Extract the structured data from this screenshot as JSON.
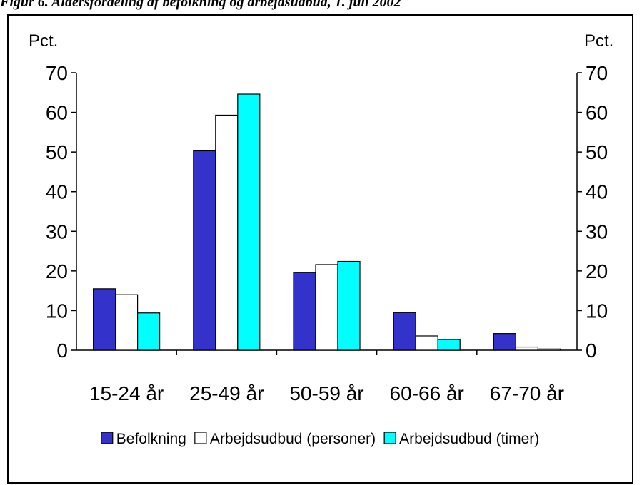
{
  "figure": {
    "title": "Figur 6. Aldersfordeling af befolkning og arbejdsudbud, 1. juli 2002"
  },
  "chart_data": {
    "type": "bar",
    "unit_left": "Pct.",
    "unit_right": "Pct.",
    "categories": [
      "15-24 år",
      "25-49 år",
      "50-59 år",
      "60-66 år",
      "67-70 år"
    ],
    "series": [
      {
        "name": "Befolkning",
        "color": "#3333cc",
        "values": [
          15.5,
          50.3,
          19.6,
          9.5,
          4.2
        ]
      },
      {
        "name": "Arbejdsudbud (personer)",
        "color": "#ffffff",
        "values": [
          14.0,
          59.3,
          21.6,
          3.6,
          0.8
        ]
      },
      {
        "name": "Arbejdsudbud (timer)",
        "color": "#00ffff",
        "values": [
          9.4,
          64.6,
          22.4,
          2.7,
          0.3
        ]
      }
    ],
    "ylim": [
      0,
      70
    ],
    "yticks": [
      0,
      10,
      20,
      30,
      40,
      50,
      60,
      70
    ],
    "grid": false,
    "legend_position": "bottom"
  }
}
